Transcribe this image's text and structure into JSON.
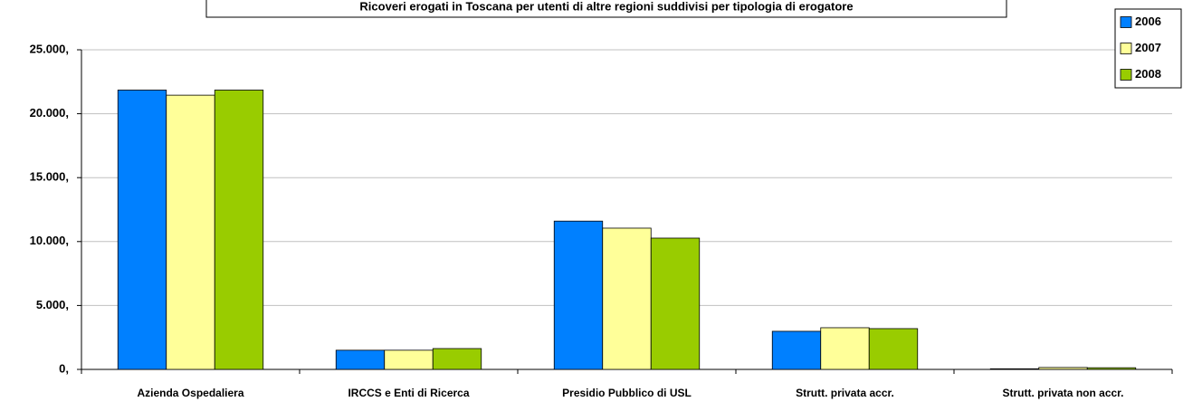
{
  "chart_data": {
    "type": "bar",
    "title": "Ricoveri erogati in Toscana per utenti di altre regioni suddivisi per tipologia di erogatore",
    "categories": [
      "Azienda Ospedaliera",
      "IRCCS e Enti di Ricerca",
      "Presidio Pubblico di USL",
      "Strutt. privata accr.",
      "Strutt. privata non accr."
    ],
    "series": [
      {
        "name": "2006",
        "color": "#0080ff",
        "values": [
          21850,
          1500,
          11600,
          2980,
          50
        ]
      },
      {
        "name": "2007",
        "color": "#ffff99",
        "values": [
          21450,
          1500,
          11050,
          3260,
          150
        ]
      },
      {
        "name": "2008",
        "color": "#99cc00",
        "values": [
          21850,
          1630,
          10270,
          3190,
          130
        ]
      }
    ],
    "ylim": [
      0,
      25000
    ],
    "yticks": [
      {
        "value": 0,
        "label": "0,"
      },
      {
        "value": 5000,
        "label": "5.000,"
      },
      {
        "value": 10000,
        "label": "10.000,"
      },
      {
        "value": 15000,
        "label": "15.000,"
      },
      {
        "value": 20000,
        "label": "20.000,"
      },
      {
        "value": 25000,
        "label": "25.000,"
      }
    ],
    "grid": true,
    "legend": "top-right"
  }
}
